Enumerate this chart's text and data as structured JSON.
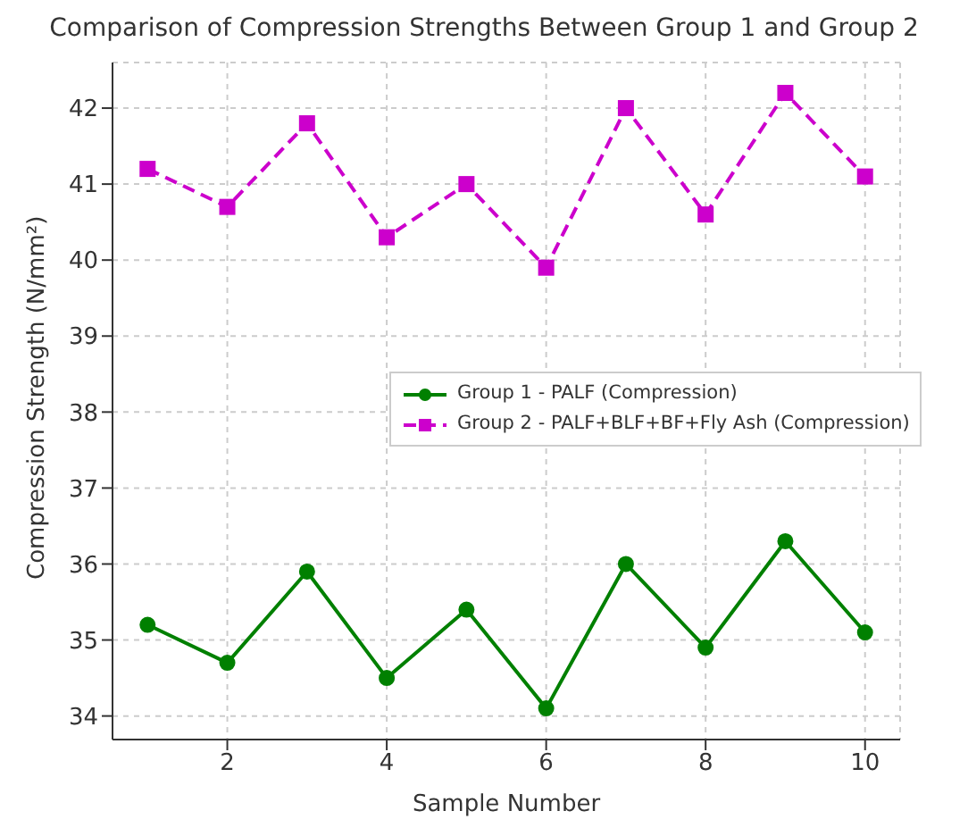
{
  "chart_data": {
    "type": "line",
    "title": "Comparison of Compression Strengths Between Group 1 and Group 2",
    "xlabel": "Sample Number",
    "ylabel": "Compression Strength (N/mm²)",
    "x": [
      1,
      2,
      3,
      4,
      5,
      6,
      7,
      8,
      9,
      10
    ],
    "series": [
      {
        "name": "Group 1 - PALF (Compression)",
        "color": "#008000",
        "marker": "circle",
        "line_style": "solid",
        "values": [
          35.2,
          34.7,
          35.9,
          34.5,
          35.4,
          34.1,
          36.0,
          34.9,
          36.3,
          35.1
        ]
      },
      {
        "name": "Group 2 - PALF+BLF+BF+Fly Ash (Compression)",
        "color": "#cc00cc",
        "marker": "square",
        "line_style": "dashed",
        "values": [
          41.2,
          40.7,
          41.8,
          40.3,
          41.0,
          39.9,
          42.0,
          40.6,
          42.2,
          41.1
        ]
      }
    ],
    "xlim": [
      0.56,
      10.44
    ],
    "xticks": [
      2,
      4,
      6,
      8,
      10
    ],
    "ylim": [
      33.69,
      42.6
    ],
    "yticks": [
      34,
      35,
      36,
      37,
      38,
      39,
      40,
      41,
      42
    ],
    "grid": true,
    "legend": "center right"
  }
}
